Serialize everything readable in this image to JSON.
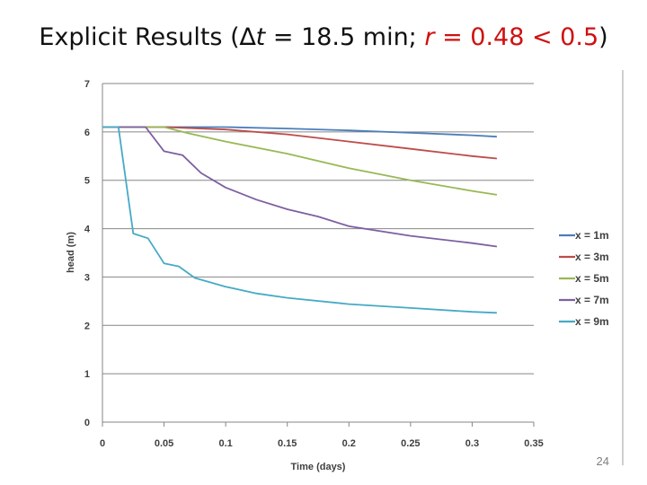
{
  "title": {
    "prefix": "Explicit Results (",
    "delta": "∆t",
    "mid": " = 18.5 min; ",
    "r_label": "r",
    "r_value": " = 0.48 < 0.5",
    "suffix": ")"
  },
  "page_number": "24",
  "chart_data": {
    "type": "line",
    "title": "",
    "xlabel": "Time (days)",
    "ylabel": "head (m)",
    "xlim": [
      0,
      0.35
    ],
    "ylim": [
      0,
      7
    ],
    "x_ticks": [
      "0",
      "0.05",
      "0.1",
      "0.15",
      "0.2",
      "0.25",
      "0.3",
      "0.35"
    ],
    "y_ticks": [
      "0",
      "1",
      "2",
      "3",
      "4",
      "5",
      "6",
      "7"
    ],
    "grid": "horizontal",
    "legend_position": "right",
    "series": [
      {
        "name": "x = 1m",
        "color": "#4a7ebb",
        "x": [
          0,
          0.05,
          0.1,
          0.15,
          0.2,
          0.25,
          0.3,
          0.32
        ],
        "y": [
          6.1,
          6.1,
          6.1,
          6.07,
          6.03,
          5.98,
          5.93,
          5.9
        ]
      },
      {
        "name": "x = 3m",
        "color": "#be4b48",
        "x": [
          0,
          0.05,
          0.1,
          0.15,
          0.2,
          0.25,
          0.3,
          0.32
        ],
        "y": [
          6.1,
          6.1,
          6.05,
          5.95,
          5.8,
          5.65,
          5.5,
          5.45
        ]
      },
      {
        "name": "x = 5m",
        "color": "#98b954",
        "x": [
          0,
          0.03,
          0.05,
          0.07,
          0.1,
          0.15,
          0.2,
          0.25,
          0.3,
          0.32
        ],
        "y": [
          6.1,
          6.1,
          6.1,
          5.97,
          5.8,
          5.55,
          5.25,
          5.0,
          4.78,
          4.7
        ]
      },
      {
        "name": "x = 7m",
        "color": "#7d60a0",
        "x": [
          0,
          0.035,
          0.05,
          0.065,
          0.08,
          0.1,
          0.125,
          0.15,
          0.175,
          0.2,
          0.25,
          0.3,
          0.32
        ],
        "y": [
          6.1,
          6.1,
          5.6,
          5.52,
          5.15,
          4.85,
          4.6,
          4.4,
          4.25,
          4.05,
          3.85,
          3.7,
          3.63
        ]
      },
      {
        "name": "x = 9m",
        "color": "#46aac5",
        "x": [
          0,
          0.013,
          0.025,
          0.037,
          0.05,
          0.062,
          0.075,
          0.1,
          0.125,
          0.15,
          0.2,
          0.25,
          0.3,
          0.32
        ],
        "y": [
          6.1,
          6.1,
          3.9,
          3.8,
          3.28,
          3.22,
          2.98,
          2.8,
          2.66,
          2.57,
          2.44,
          2.36,
          2.28,
          2.26
        ]
      }
    ]
  }
}
